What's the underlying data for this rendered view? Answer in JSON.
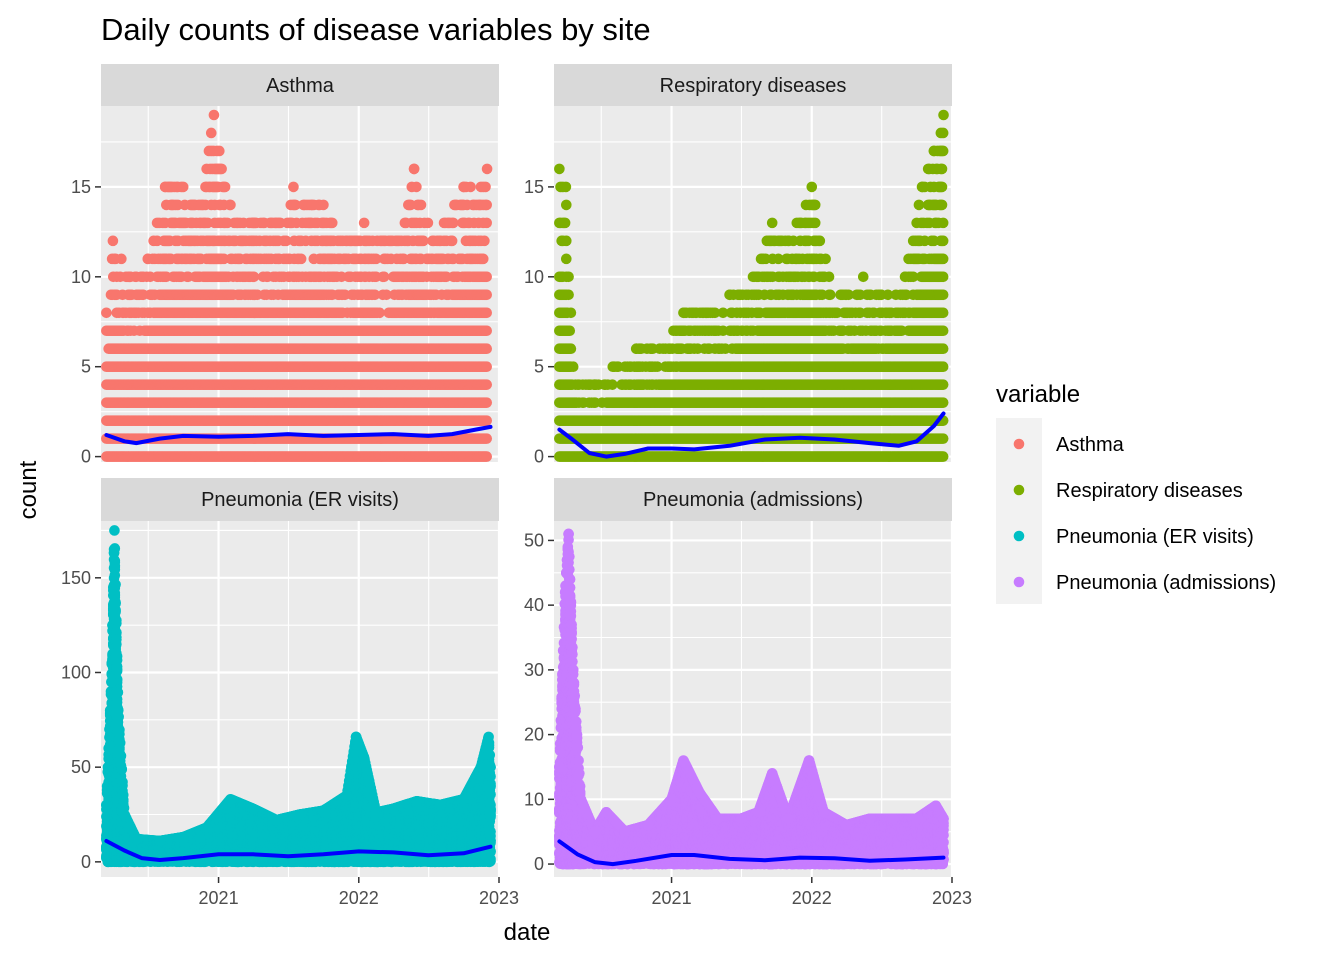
{
  "chart_data": {
    "type": "scatter",
    "title": "Daily counts of disease variables by site",
    "xlabel": "date",
    "ylabel": "count",
    "x_ticks": [
      "2021",
      "2022",
      "2023"
    ],
    "x_range": [
      "2020-03-01",
      "2023-01-01"
    ],
    "legend": {
      "title": "variable",
      "position": "right",
      "entries": [
        "Asthma",
        "Respiratory diseases",
        "Pneumonia (ER visits)",
        "Pneumonia (admissions)"
      ]
    },
    "colors": {
      "Asthma": "#F8766D",
      "Respiratory diseases": "#7CAE00",
      "Pneumonia (ER visits)": "#00BFC4",
      "Pneumonia (admissions)": "#C77CFF",
      "smooth": "#0000FF",
      "panel_bg": "#EBEBEB",
      "strip_bg": "#D9D9D9",
      "grid": "#FFFFFF"
    },
    "grid": true,
    "panels": [
      {
        "label": "Asthma",
        "ylim": [
          -0.3,
          19.5
        ],
        "y_ticks": [
          0,
          5,
          10,
          15
        ],
        "y_tick_labels": [
          "0",
          "5",
          "10",
          "15"
        ],
        "max_value": 19,
        "point_profile": [
          [
            "2020-03-15",
            8
          ],
          [
            "2020-04-01",
            12
          ],
          [
            "2020-05-15",
            10
          ],
          [
            "2020-07-01",
            11
          ],
          [
            "2020-08-15",
            15
          ],
          [
            "2020-10-01",
            15
          ],
          [
            "2020-11-15",
            14
          ],
          [
            "2020-12-20",
            19
          ],
          [
            "2021-02-01",
            14
          ],
          [
            "2021-04-01",
            13
          ],
          [
            "2021-06-01",
            13
          ],
          [
            "2021-07-15",
            15
          ],
          [
            "2021-09-01",
            14
          ],
          [
            "2021-10-01",
            14
          ],
          [
            "2021-12-01",
            12
          ],
          [
            "2022-01-15",
            13
          ],
          [
            "2022-03-01",
            12
          ],
          [
            "2022-05-01",
            13
          ],
          [
            "2022-05-25",
            16
          ],
          [
            "2022-07-15",
            12
          ],
          [
            "2022-10-01",
            15
          ],
          [
            "2022-12-01",
            16
          ]
        ],
        "smooth": [
          [
            "2020-03-15",
            1.2
          ],
          [
            "2020-05-01",
            0.85
          ],
          [
            "2020-06-01",
            0.75
          ],
          [
            "2020-08-01",
            1.0
          ],
          [
            "2020-10-01",
            1.15
          ],
          [
            "2021-01-01",
            1.1
          ],
          [
            "2021-04-01",
            1.15
          ],
          [
            "2021-07-01",
            1.25
          ],
          [
            "2021-10-01",
            1.15
          ],
          [
            "2022-01-01",
            1.2
          ],
          [
            "2022-04-01",
            1.25
          ],
          [
            "2022-07-01",
            1.15
          ],
          [
            "2022-09-01",
            1.25
          ],
          [
            "2022-11-01",
            1.5
          ],
          [
            "2022-12-10",
            1.65
          ]
        ]
      },
      {
        "label": "Respiratory diseases",
        "ylim": [
          -0.3,
          19.5
        ],
        "y_ticks": [
          0,
          5,
          10,
          15
        ],
        "y_tick_labels": [
          "0",
          "5",
          "10",
          "15"
        ],
        "max_value": 19,
        "point_profile": [
          [
            "2020-03-15",
            16
          ],
          [
            "2020-04-01",
            15
          ],
          [
            "2020-04-20",
            5
          ],
          [
            "2020-05-15",
            4
          ],
          [
            "2020-06-15",
            4
          ],
          [
            "2020-08-01",
            5
          ],
          [
            "2020-10-01",
            6
          ],
          [
            "2020-12-01",
            6
          ],
          [
            "2021-02-01",
            8
          ],
          [
            "2021-04-01",
            8
          ],
          [
            "2021-06-01",
            9
          ],
          [
            "2021-08-01",
            10
          ],
          [
            "2021-09-20",
            13
          ],
          [
            "2021-11-01",
            12
          ],
          [
            "2022-01-01",
            15
          ],
          [
            "2022-02-15",
            10
          ],
          [
            "2022-04-01",
            9
          ],
          [
            "2022-05-15",
            10
          ],
          [
            "2022-07-01",
            9
          ],
          [
            "2022-09-01",
            10
          ],
          [
            "2022-10-15",
            15
          ],
          [
            "2022-11-15",
            17
          ],
          [
            "2022-12-10",
            19
          ]
        ],
        "smooth": [
          [
            "2020-03-15",
            1.5
          ],
          [
            "2020-04-15",
            1.0
          ],
          [
            "2020-06-01",
            0.2
          ],
          [
            "2020-07-15",
            0.0
          ],
          [
            "2020-09-01",
            0.15
          ],
          [
            "2020-11-01",
            0.45
          ],
          [
            "2021-01-01",
            0.45
          ],
          [
            "2021-03-01",
            0.4
          ],
          [
            "2021-06-01",
            0.6
          ],
          [
            "2021-09-01",
            0.95
          ],
          [
            "2021-12-01",
            1.05
          ],
          [
            "2022-03-01",
            0.95
          ],
          [
            "2022-06-01",
            0.75
          ],
          [
            "2022-08-15",
            0.6
          ],
          [
            "2022-10-01",
            0.85
          ],
          [
            "2022-11-15",
            1.7
          ],
          [
            "2022-12-10",
            2.4
          ]
        ]
      },
      {
        "label": "Pneumonia (ER visits)",
        "ylim": [
          -8,
          180
        ],
        "y_ticks": [
          0,
          50,
          100,
          150
        ],
        "y_tick_labels": [
          "0",
          "50",
          "100",
          "150"
        ],
        "max_value": 175,
        "point_profile": [
          [
            "2020-03-15",
            30
          ],
          [
            "2020-03-28",
            95
          ],
          [
            "2020-04-05",
            175
          ],
          [
            "2020-04-15",
            80
          ],
          [
            "2020-05-01",
            25
          ],
          [
            "2020-06-01",
            12
          ],
          [
            "2020-08-01",
            11
          ],
          [
            "2020-10-01",
            13
          ],
          [
            "2020-12-01",
            18
          ],
          [
            "2021-02-01",
            33
          ],
          [
            "2021-04-01",
            28
          ],
          [
            "2021-06-01",
            22
          ],
          [
            "2021-08-01",
            25
          ],
          [
            "2021-10-01",
            27
          ],
          [
            "2021-12-01",
            35
          ],
          [
            "2021-12-25",
            66
          ],
          [
            "2022-01-15",
            55
          ],
          [
            "2022-02-15",
            26
          ],
          [
            "2022-04-01",
            28
          ],
          [
            "2022-06-01",
            32
          ],
          [
            "2022-08-01",
            30
          ],
          [
            "2022-10-01",
            33
          ],
          [
            "2022-11-15",
            50
          ],
          [
            "2022-12-05",
            66
          ],
          [
            "2022-12-10",
            50
          ]
        ],
        "smooth": [
          [
            "2020-03-15",
            11
          ],
          [
            "2020-05-01",
            6
          ],
          [
            "2020-06-15",
            2
          ],
          [
            "2020-08-01",
            1
          ],
          [
            "2020-10-01",
            2
          ],
          [
            "2021-01-01",
            4
          ],
          [
            "2021-04-01",
            4
          ],
          [
            "2021-07-01",
            3
          ],
          [
            "2021-10-01",
            4
          ],
          [
            "2022-01-01",
            5.5
          ],
          [
            "2022-04-01",
            5
          ],
          [
            "2022-07-01",
            3.5
          ],
          [
            "2022-10-01",
            4.5
          ],
          [
            "2022-12-10",
            8
          ]
        ]
      },
      {
        "label": "Pneumonia (admissions)",
        "ylim": [
          -2,
          53
        ],
        "y_ticks": [
          0,
          10,
          20,
          30,
          40,
          50
        ],
        "y_tick_labels": [
          "0",
          "10",
          "20",
          "30",
          "40",
          "50"
        ],
        "max_value": 51,
        "point_profile": [
          [
            "2020-03-15",
            15
          ],
          [
            "2020-03-30",
            42
          ],
          [
            "2020-04-08",
            51
          ],
          [
            "2020-04-20",
            30
          ],
          [
            "2020-05-10",
            10
          ],
          [
            "2020-06-15",
            5
          ],
          [
            "2020-07-15",
            8
          ],
          [
            "2020-09-01",
            5
          ],
          [
            "2020-11-01",
            6
          ],
          [
            "2021-01-01",
            10
          ],
          [
            "2021-02-01",
            16
          ],
          [
            "2021-03-15",
            11
          ],
          [
            "2021-05-01",
            7
          ],
          [
            "2021-07-01",
            7
          ],
          [
            "2021-08-15",
            8
          ],
          [
            "2021-09-20",
            14
          ],
          [
            "2021-11-01",
            7
          ],
          [
            "2021-12-25",
            16
          ],
          [
            "2022-02-01",
            8
          ],
          [
            "2022-04-01",
            6
          ],
          [
            "2022-06-01",
            7
          ],
          [
            "2022-08-01",
            7
          ],
          [
            "2022-10-01",
            7
          ],
          [
            "2022-11-20",
            9
          ],
          [
            "2022-12-10",
            7
          ]
        ],
        "smooth": [
          [
            "2020-03-15",
            3.5
          ],
          [
            "2020-05-01",
            1.5
          ],
          [
            "2020-06-15",
            0.3
          ],
          [
            "2020-08-01",
            0.0
          ],
          [
            "2020-10-01",
            0.5
          ],
          [
            "2021-01-01",
            1.4
          ],
          [
            "2021-03-01",
            1.4
          ],
          [
            "2021-06-01",
            0.8
          ],
          [
            "2021-09-01",
            0.6
          ],
          [
            "2021-12-01",
            1.0
          ],
          [
            "2022-03-01",
            0.9
          ],
          [
            "2022-06-01",
            0.5
          ],
          [
            "2022-09-01",
            0.7
          ],
          [
            "2022-12-10",
            1.0
          ]
        ]
      }
    ]
  }
}
